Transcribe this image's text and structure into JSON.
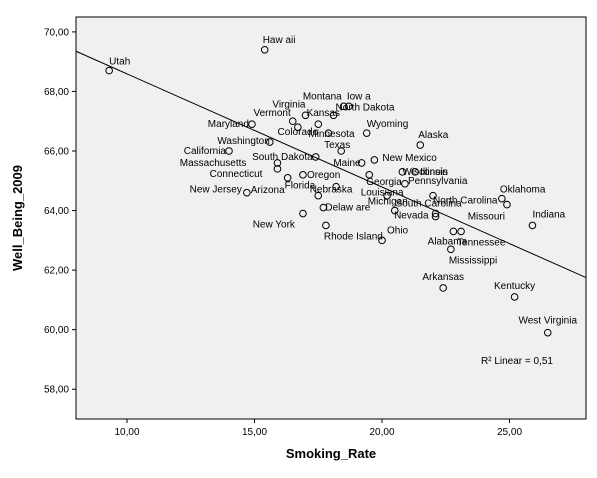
{
  "chart_data": {
    "type": "scatter",
    "title": "",
    "xlabel": "Smoking_Rate",
    "ylabel": "Well_Being_2009",
    "xlim": [
      8,
      28
    ],
    "ylim": [
      57,
      70.5
    ],
    "x_ticks": [
      "10,00",
      "15,00",
      "20,00",
      "25,00"
    ],
    "x_tick_values": [
      10,
      15,
      20,
      25
    ],
    "y_ticks": [
      "58,00",
      "60,00",
      "62,00",
      "64,00",
      "66,00",
      "68,00",
      "70,00"
    ],
    "y_tick_values": [
      58,
      60,
      62,
      64,
      66,
      68,
      70
    ],
    "grid": false,
    "plot_background": "#f0f0f0",
    "marker": "open-circle",
    "fit_line": {
      "label": "R² Linear = 0,51",
      "x": [
        8,
        28
      ],
      "y": [
        69.35,
        61.75
      ]
    },
    "points": [
      {
        "label": "Utah",
        "x": 9.3,
        "y": 68.7
      },
      {
        "label": "Haw aii",
        "x": 15.4,
        "y": 69.4
      },
      {
        "label": "Iow a",
        "x": 18.7,
        "y": 67.5
      },
      {
        "label": "Montana",
        "x": 18.5,
        "y": 67.5
      },
      {
        "label": "Virginia",
        "x": 17.0,
        "y": 67.2
      },
      {
        "label": "North Dakota",
        "x": 18.1,
        "y": 67.2
      },
      {
        "label": "Vermont",
        "x": 16.5,
        "y": 67.0
      },
      {
        "label": "Kansas",
        "x": 17.5,
        "y": 66.9
      },
      {
        "label": "Maryland",
        "x": 14.9,
        "y": 66.9
      },
      {
        "label": "Colorado",
        "x": 16.7,
        "y": 66.8
      },
      {
        "label": "Wyoming",
        "x": 19.4,
        "y": 66.6
      },
      {
        "label": "Minnesota",
        "x": 17.9,
        "y": 66.6
      },
      {
        "label": "Alaska",
        "x": 21.5,
        "y": 66.2
      },
      {
        "label": "Washington",
        "x": 15.6,
        "y": 66.3
      },
      {
        "label": "California",
        "x": 14.0,
        "y": 66.0
      },
      {
        "label": "Texas",
        "x": 18.4,
        "y": 66.0
      },
      {
        "label": "South Dakota",
        "x": 17.4,
        "y": 65.8
      },
      {
        "label": "New Mexico",
        "x": 19.7,
        "y": 65.7
      },
      {
        "label": "Massachusetts",
        "x": 15.9,
        "y": 65.6
      },
      {
        "label": "Maine",
        "x": 19.2,
        "y": 65.6
      },
      {
        "label": "Wisconsin",
        "x": 20.8,
        "y": 65.3
      },
      {
        "label": "Illinois",
        "x": 21.3,
        "y": 65.3
      },
      {
        "label": "Georgia",
        "x": 19.5,
        "y": 65.2
      },
      {
        "label": "Connecticut",
        "x": 15.9,
        "y": 65.4
      },
      {
        "label": "Oregon",
        "x": 16.9,
        "y": 65.2
      },
      {
        "label": "Arizona",
        "x": 16.3,
        "y": 65.1
      },
      {
        "label": "Pennsylvania",
        "x": 20.9,
        "y": 64.9
      },
      {
        "label": "Nebraska",
        "x": 18.2,
        "y": 64.8
      },
      {
        "label": "Louisiana",
        "x": 20.2,
        "y": 64.5
      },
      {
        "label": "North Carolina",
        "x": 22.0,
        "y": 64.5
      },
      {
        "label": "Oklahoma",
        "x": 24.7,
        "y": 64.4
      },
      {
        "label": "Florida",
        "x": 17.5,
        "y": 64.5
      },
      {
        "label": "New Jersey",
        "x": 14.7,
        "y": 64.6
      },
      {
        "label": "Missouri",
        "x": 24.9,
        "y": 64.2
      },
      {
        "label": "South Carolina",
        "x": 22.1,
        "y": 63.9
      },
      {
        "label": "Indiana",
        "x": 25.9,
        "y": 63.5
      },
      {
        "label": "Delaw are",
        "x": 17.7,
        "y": 64.1
      },
      {
        "label": "Michigan",
        "x": 20.5,
        "y": 64.0
      },
      {
        "label": "New York",
        "x": 16.9,
        "y": 63.9
      },
      {
        "label": "Nevada",
        "x": 22.1,
        "y": 63.8
      },
      {
        "label": "Rhode Island",
        "x": 17.8,
        "y": 63.5
      },
      {
        "label": "Ohio",
        "x": 20.0,
        "y": 63.0
      },
      {
        "label": "Alabama",
        "x": 22.8,
        "y": 63.3
      },
      {
        "label": "Tennessee",
        "x": 23.1,
        "y": 63.3
      },
      {
        "label": "Mississippi",
        "x": 22.7,
        "y": 62.7
      },
      {
        "label": "Arkansas",
        "x": 22.4,
        "y": 61.4
      },
      {
        "label": "Kentucky",
        "x": 25.2,
        "y": 61.1
      },
      {
        "label": "West Virginia",
        "x": 26.5,
        "y": 59.9
      }
    ]
  }
}
